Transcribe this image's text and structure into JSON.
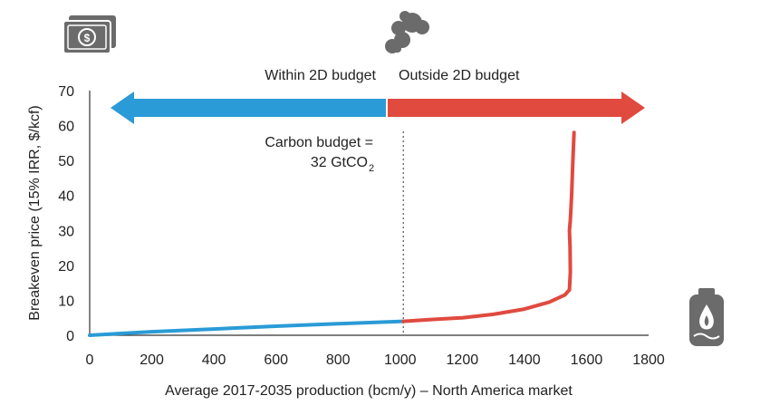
{
  "chart_data": {
    "type": "line",
    "xlabel": "Average 2017-2035 production (bcm/y) – North America market",
    "ylabel": "Breakeven price (15% IRR, $/kcf)",
    "xlim": [
      0,
      1800
    ],
    "ylim": [
      0,
      70
    ],
    "x_ticks": [
      "0",
      "200",
      "400",
      "600",
      "800",
      "1000",
      "1200",
      "1400",
      "1600",
      "1800"
    ],
    "y_ticks": [
      "0",
      "10",
      "20",
      "30",
      "40",
      "50",
      "60",
      "70"
    ],
    "grid": false,
    "series": [
      {
        "name": "",
        "color": "#2a9bd6",
        "points": [
          [
            0,
            0
          ],
          [
            200,
            1.0
          ],
          [
            400,
            1.8
          ],
          [
            600,
            2.6
          ],
          [
            800,
            3.3
          ],
          [
            1010,
            4.0
          ]
        ]
      },
      {
        "name": "",
        "color": "#e04a3f",
        "points": [
          [
            1010,
            4.0
          ],
          [
            1100,
            4.5
          ],
          [
            1200,
            5.0
          ],
          [
            1300,
            6.0
          ],
          [
            1400,
            7.5
          ],
          [
            1480,
            9.5
          ],
          [
            1530,
            11.5
          ],
          [
            1545,
            13.0
          ],
          [
            1548,
            18.0
          ],
          [
            1547,
            25.0
          ],
          [
            1545,
            30.0
          ],
          [
            1548,
            33.0
          ],
          [
            1552,
            40.0
          ],
          [
            1556,
            50.0
          ],
          [
            1560,
            58.0
          ]
        ]
      }
    ],
    "annotations": {
      "budget_line_x": 1010,
      "budget_label_line1": "Carbon budget =",
      "budget_label_line2": "32 GtCO",
      "budget_label_sub": "2",
      "left_region": "Within 2D budget",
      "right_region": "Outside 2D budget"
    },
    "colors": {
      "within": "#2a9bd6",
      "outside": "#e04a3f",
      "icon": "#6b6b6b"
    },
    "icons": {
      "top_left": "money-icon",
      "top_center": "smoke-cloud-icon",
      "bottom_right": "gas-canister-icon"
    }
  }
}
